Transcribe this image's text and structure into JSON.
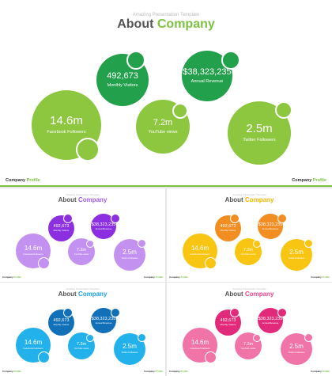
{
  "slide": {
    "subtitle": "Amazing Presentation Template",
    "title_word": "About",
    "title_accent": "Company",
    "footer_left_word": "Company",
    "footer_left_accent": "Profile",
    "footer_right_word": "Company",
    "footer_right_accent": "Profile",
    "stats": {
      "visitors": {
        "value": "492,673",
        "label": "Monthly Visitors"
      },
      "revenue": {
        "value": "$38,323,235",
        "label": "Annual Revenue"
      },
      "facebook": {
        "value": "14.6m",
        "label": "Facebook Followers"
      },
      "youtube": {
        "value": "7.2m",
        "label": "YouTube views"
      },
      "twitter": {
        "value": "2.5m",
        "label": "Twitter Followers"
      }
    }
  },
  "themes": {
    "green": {
      "accent": "#7cc242",
      "light": "#8dc63f",
      "dark": "#22a04b"
    },
    "purple": {
      "accent": "#a05de6",
      "light": "#c391f0",
      "dark": "#8b2fe0"
    },
    "orange": {
      "accent": "#f5b300",
      "light": "#f9c513",
      "dark": "#f28d22"
    },
    "blue": {
      "accent": "#1ba1e2",
      "light": "#22b1ea",
      "dark": "#1170b8"
    },
    "pink": {
      "accent": "#e8458b",
      "light": "#f074a8",
      "dark": "#e22a7b"
    }
  }
}
